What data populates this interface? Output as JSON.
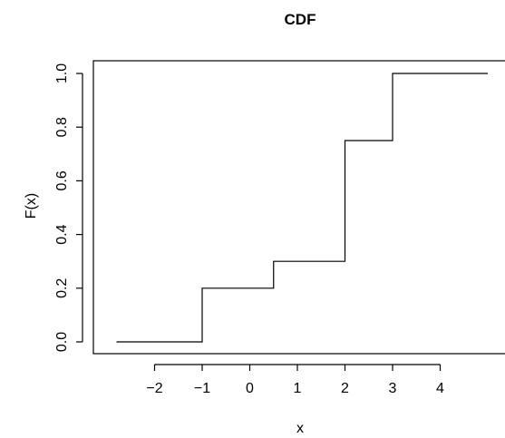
{
  "chart_data": {
    "type": "line",
    "title": "CDF",
    "xlabel": "x",
    "ylabel": "F(x)",
    "xlim": [
      -3,
      5
    ],
    "ylim": [
      0,
      1
    ],
    "x_ticks": [
      -2,
      -1,
      0,
      1,
      2,
      3,
      4
    ],
    "x_tick_labels": [
      "−2",
      "−1",
      "0",
      "1",
      "2",
      "3",
      "4"
    ],
    "y_ticks": [
      0.0,
      0.2,
      0.4,
      0.6,
      0.8,
      1.0
    ],
    "y_tick_labels": [
      "0.0",
      "0.2",
      "0.4",
      "0.6",
      "0.8",
      "1.0"
    ],
    "grid": false,
    "series": [
      {
        "x": [
          -2.8,
          -1,
          0.5,
          2,
          3,
          5
        ],
        "y": [
          0.0,
          0.2,
          0.3,
          0.75,
          1.0,
          1.0
        ],
        "step": "post",
        "color": "#000000"
      }
    ]
  }
}
